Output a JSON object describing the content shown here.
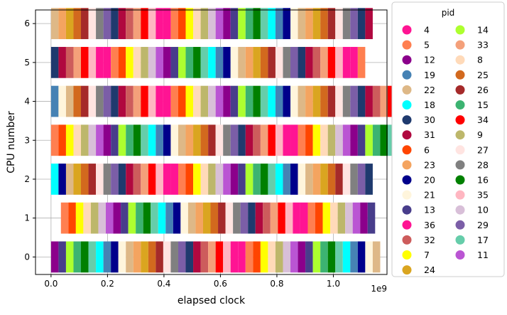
{
  "chart_data": {
    "type": "bar",
    "orientation": "horizontal-timeline",
    "xlabel": "elapsed clock",
    "ylabel": "CPU number",
    "x_offset_text": "1e9",
    "x_ticks": [
      0.0,
      0.2,
      0.4,
      0.6,
      0.8,
      1.0
    ],
    "x_tick_labels": [
      "0.0",
      "0.2",
      "0.4",
      "0.6",
      "0.8",
      "1.0"
    ],
    "xlim": [
      -0.055,
      1.19
    ],
    "y_ticks": [
      0,
      1,
      2,
      3,
      4,
      5,
      6
    ],
    "y_tick_labels": [
      "0",
      "1",
      "2",
      "3",
      "4",
      "5",
      "6"
    ],
    "ylim": [
      -0.45,
      6.35
    ],
    "grid": true,
    "legend": {
      "title": "pid",
      "placement": "outside-right",
      "columns": 2,
      "entries": [
        {
          "pid": "4",
          "color": "#ff1493"
        },
        {
          "pid": "5",
          "color": "#ff7f50"
        },
        {
          "pid": "12",
          "color": "#8b008b"
        },
        {
          "pid": "19",
          "color": "#4682b4"
        },
        {
          "pid": "22",
          "color": "#deb887"
        },
        {
          "pid": "18",
          "color": "#00ffff"
        },
        {
          "pid": "30",
          "color": "#1f3a6e"
        },
        {
          "pid": "31",
          "color": "#b0083f"
        },
        {
          "pid": "6",
          "color": "#ff4500"
        },
        {
          "pid": "23",
          "color": "#f4a460"
        },
        {
          "pid": "20",
          "color": "#00008b"
        },
        {
          "pid": "21",
          "color": "#fff5dc"
        },
        {
          "pid": "13",
          "color": "#483d8b"
        },
        {
          "pid": "36",
          "color": "#ff1493"
        },
        {
          "pid": "32",
          "color": "#cd5c5c"
        },
        {
          "pid": "7",
          "color": "#ffff00"
        },
        {
          "pid": "24",
          "color": "#daa520"
        },
        {
          "pid": "14",
          "color": "#adff2f"
        },
        {
          "pid": "33",
          "color": "#f4a07a"
        },
        {
          "pid": "8",
          "color": "#ffdab9"
        },
        {
          "pid": "25",
          "color": "#d2691e"
        },
        {
          "pid": "26",
          "color": "#a52a2a"
        },
        {
          "pid": "15",
          "color": "#3cb371"
        },
        {
          "pid": "34",
          "color": "#ff0000"
        },
        {
          "pid": "9",
          "color": "#bdb76b"
        },
        {
          "pid": "27",
          "color": "#ffe4e1"
        },
        {
          "pid": "28",
          "color": "#808080"
        },
        {
          "pid": "16",
          "color": "#008000"
        },
        {
          "pid": "35",
          "color": "#ffb6c1"
        },
        {
          "pid": "10",
          "color": "#d8bfd8"
        },
        {
          "pid": "29",
          "color": "#7b5ea7"
        },
        {
          "pid": "17",
          "color": "#66cdaa"
        },
        {
          "pid": "11",
          "color": "#ba55d3"
        }
      ]
    },
    "slice_width": 0.0265,
    "cpus": [
      {
        "cpu": 0,
        "start": 0.0,
        "pids": [
          "12",
          "13",
          "14",
          "15",
          "16",
          "17",
          "18",
          "19",
          "20",
          "21",
          "22",
          "23",
          "24",
          "25",
          "26",
          "27",
          "28",
          "29",
          "30",
          "31",
          "32",
          "33",
          "34",
          "35",
          "36",
          "4",
          "5",
          "6",
          "7",
          "8",
          "9",
          "10",
          "11",
          "12",
          "13",
          "14",
          "15",
          "16",
          "17",
          "18",
          "19",
          "20",
          "21",
          "22"
        ]
      },
      {
        "cpu": 1,
        "start": 0.035,
        "pids": [
          "5",
          "6",
          "7",
          "8",
          "9",
          "10",
          "11",
          "12",
          "13",
          "14",
          "15",
          "16",
          "17",
          "18",
          "19",
          "20",
          "21",
          "22",
          "23",
          "24",
          "25",
          "26",
          "27",
          "28",
          "29",
          "30",
          "31",
          "32",
          "33",
          "34",
          "35",
          "36",
          "4",
          "5",
          "6",
          "7",
          "8",
          "9",
          "10",
          "11",
          "12",
          "13"
        ]
      },
      {
        "cpu": 2,
        "start": 0.0,
        "pids": [
          "18",
          "20",
          "22",
          "24",
          "25",
          "26",
          "27",
          "28",
          "29",
          "30",
          "31",
          "32",
          "33",
          "34",
          "35",
          "36",
          "4",
          "5",
          "6",
          "7",
          "8",
          "9",
          "10",
          "11",
          "12",
          "13",
          "14",
          "15",
          "16",
          "17",
          "18",
          "19",
          "20",
          "21",
          "22",
          "23",
          "24",
          "25",
          "26",
          "27",
          "28",
          "29",
          "30"
        ]
      },
      {
        "cpu": 3,
        "start": 0.0,
        "pids": [
          "5",
          "6",
          "7",
          "8",
          "9",
          "10",
          "11",
          "12",
          "13",
          "14",
          "15",
          "16",
          "17",
          "18",
          "19",
          "20",
          "21",
          "22",
          "23",
          "24",
          "25",
          "26",
          "27",
          "28",
          "29",
          "30",
          "31",
          "32",
          "33",
          "34",
          "35",
          "36",
          "4",
          "5",
          "6",
          "7",
          "8",
          "9",
          "10",
          "11",
          "12",
          "13",
          "14",
          "15",
          "16",
          "17",
          "18",
          "19",
          "20",
          "21",
          "22",
          "23",
          "24",
          "25",
          "26"
        ]
      },
      {
        "cpu": 4,
        "start": 0.0,
        "pids": [
          "19",
          "21",
          "22",
          "25",
          "26",
          "27",
          "28",
          "29",
          "30",
          "31",
          "32",
          "33",
          "34",
          "35",
          "36",
          "4",
          "5",
          "6",
          "7",
          "8",
          "9",
          "10",
          "11",
          "12",
          "13",
          "14",
          "15",
          "16",
          "17",
          "18",
          "19",
          "20",
          "21",
          "22",
          "23",
          "24",
          "25",
          "26",
          "27",
          "28",
          "29",
          "30",
          "31",
          "32",
          "33",
          "34",
          "35",
          "36",
          "4",
          "5",
          "6"
        ]
      },
      {
        "cpu": 5,
        "start": 0.0,
        "pids": [
          "30",
          "31",
          "32",
          "33",
          "34",
          "35",
          "36",
          "4",
          "5",
          "6",
          "7",
          "8",
          "9",
          "10",
          "11",
          "12",
          "13",
          "14",
          "15",
          "16",
          "17",
          "18",
          "19",
          "20",
          "21",
          "22",
          "23",
          "24",
          "25",
          "26",
          "27",
          "28",
          "29",
          "30",
          "31",
          "32",
          "33",
          "34",
          "35",
          "36",
          "4",
          "5"
        ]
      },
      {
        "cpu": 6,
        "start": 0.0,
        "pids": [
          "22",
          "23",
          "24",
          "25",
          "26",
          "27",
          "28",
          "29",
          "30",
          "31",
          "32",
          "33",
          "34",
          "35",
          "36",
          "4",
          "5",
          "6",
          "7",
          "8",
          "9",
          "10",
          "11",
          "12",
          "13",
          "14",
          "15",
          "16",
          "17",
          "18",
          "19",
          "20",
          "21",
          "22",
          "23",
          "24",
          "25",
          "26",
          "27",
          "28",
          "29",
          "30",
          "31"
        ]
      }
    ]
  }
}
